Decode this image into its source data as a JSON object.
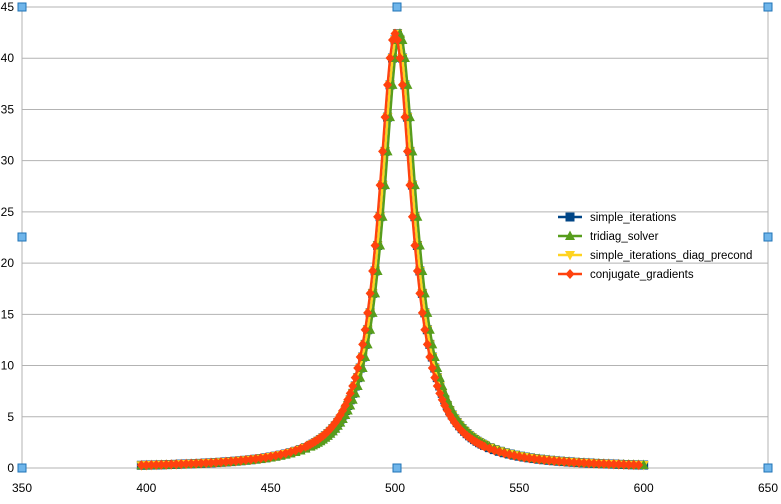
{
  "chart_data": {
    "type": "scatter",
    "title": "",
    "xlabel": "",
    "ylabel": "",
    "xlim": [
      350,
      650
    ],
    "ylim": [
      0,
      45
    ],
    "x_ticks": [
      350,
      400,
      450,
      500,
      550,
      600,
      650
    ],
    "y_ticks": [
      0,
      5,
      10,
      15,
      20,
      25,
      30,
      35,
      40,
      45
    ],
    "grid": "horizontal",
    "legend_position": "right",
    "x_range": [
      398,
      600
    ],
    "series": [
      {
        "name": "simple_iterations",
        "color": "#004586",
        "marker": "square",
        "peak_x": 501,
        "peak_y": 42.4,
        "x_range": [
          398,
          600
        ]
      },
      {
        "name": "tridiag_solver",
        "color": "#579d1c",
        "marker": "triangle-up",
        "peak_x": 502,
        "peak_y": 42.4,
        "x_range": [
          398,
          601
        ]
      },
      {
        "name": "simple_iterations_diag_precond",
        "color": "#ffd320",
        "marker": "triangle-down",
        "peak_x": 501,
        "peak_y": 42.4,
        "x_range": [
          398,
          600
        ]
      },
      {
        "name": "conjugate_gradients",
        "color": "#ff420e",
        "marker": "diamond",
        "peak_x": 500,
        "peak_y": 42.4,
        "x_range": [
          397,
          599
        ]
      }
    ]
  }
}
